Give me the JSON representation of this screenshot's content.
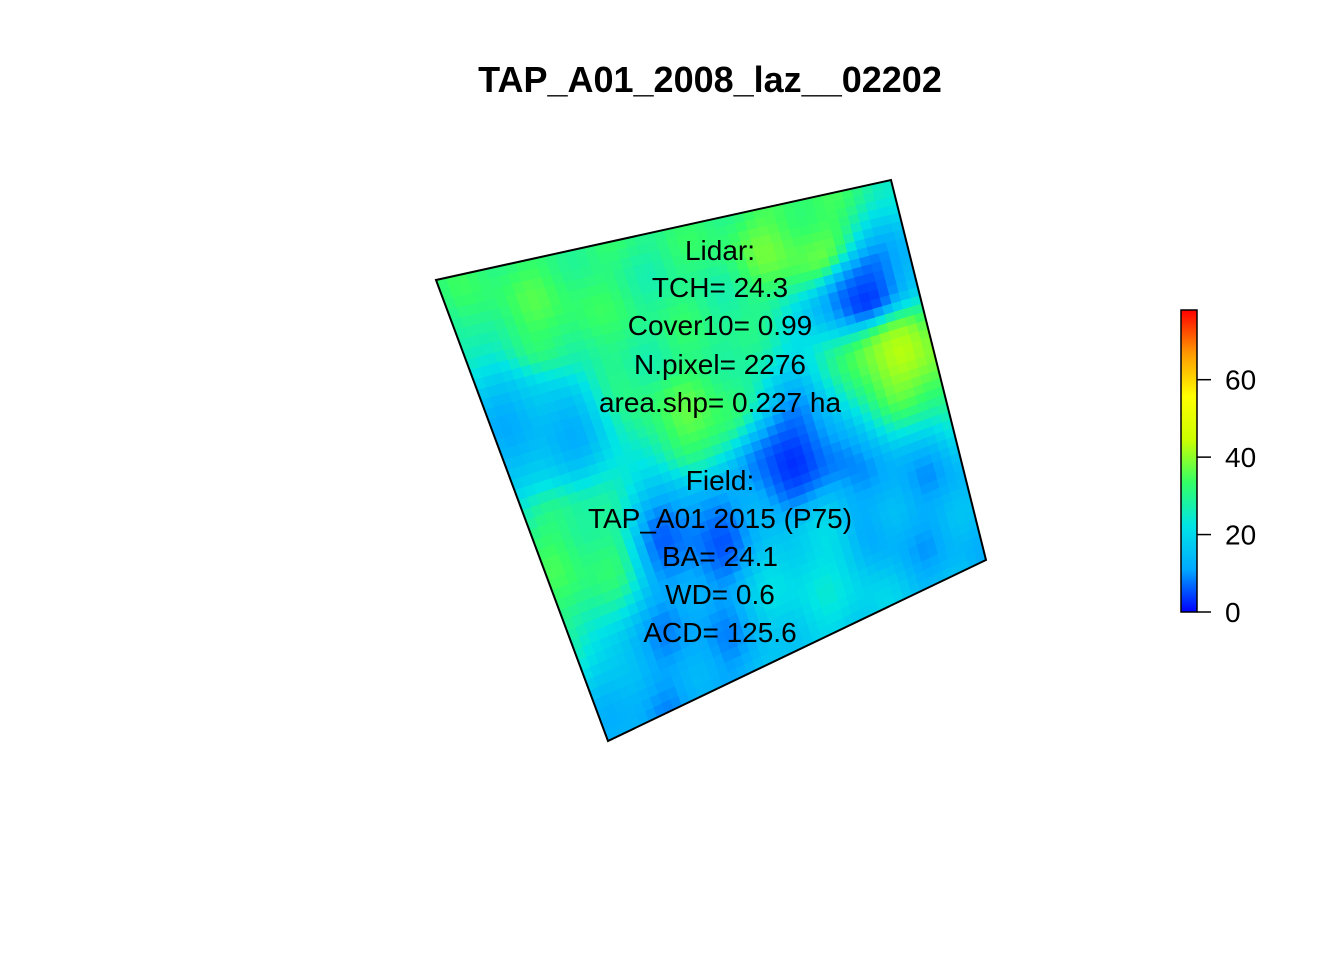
{
  "chart_data": {
    "type": "heatmap",
    "title": "TAP_A01_2008_laz__02202",
    "annotation": {
      "lidar_header": "Lidar:",
      "tch": "TCH= 24.3",
      "cover10": "Cover10= 0.99",
      "npixel": "N.pixel= 2276",
      "area": "area.shp= 0.227 ha",
      "field_header": "Field:",
      "plot": "TAP_A01 2015 (P75)",
      "ba": "BA= 24.1",
      "wd": "WD= 0.6",
      "acd": "ACD= 125.6"
    },
    "colorbar": {
      "range": [
        0,
        78
      ],
      "ticks": [
        0,
        20,
        40,
        60
      ],
      "tick_labels": [
        "0",
        "20",
        "40",
        "60"
      ],
      "colormap": "rainbow blue-to-red",
      "colors": [
        "#0000ff",
        "#00aaff",
        "#00e5e5",
        "#33ff66",
        "#ccff00",
        "#ffff00",
        "#ff9900",
        "#ff0000"
      ]
    },
    "grid_resolution": [
      46,
      46
    ],
    "hotspots_description_values": [
      {
        "u": 0.2,
        "v": 0.12,
        "value": 33
      },
      {
        "u": 0.78,
        "v": 0.12,
        "value": 36
      },
      {
        "u": 0.42,
        "v": 0.22,
        "value": 30
      },
      {
        "u": 0.92,
        "v": 0.42,
        "value": 40
      },
      {
        "u": 0.45,
        "v": 0.42,
        "value": 34
      },
      {
        "u": 0.08,
        "v": 0.62,
        "value": 32
      },
      {
        "u": 0.62,
        "v": 0.58,
        "value": 6
      },
      {
        "u": 0.35,
        "v": 0.68,
        "value": 8
      },
      {
        "u": 0.88,
        "v": 0.25,
        "value": 6
      },
      {
        "u": 0.82,
        "v": 0.78,
        "value": 12
      },
      {
        "u": 0.25,
        "v": 0.92,
        "value": 11
      },
      {
        "u": 0.1,
        "v": 0.35,
        "value": 14
      },
      {
        "u": 0.6,
        "v": 0.85,
        "value": 21
      }
    ]
  }
}
